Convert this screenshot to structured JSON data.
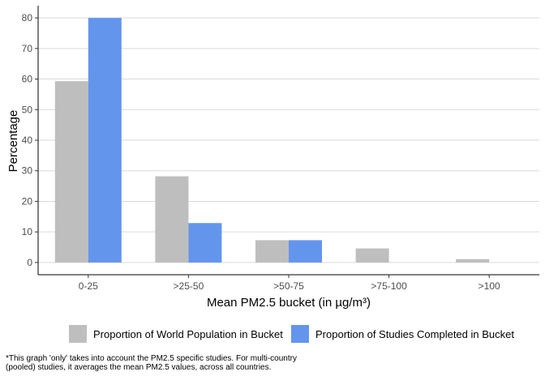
{
  "chart_data": {
    "type": "bar",
    "categories": [
      "0-25",
      ">25-50",
      ">50-75",
      ">75-100",
      ">100"
    ],
    "series": [
      {
        "name": "Proportion of World Population in Bucket",
        "values": [
          59.3,
          28.2,
          7.3,
          4.6,
          1.1
        ],
        "color": "#bebebe"
      },
      {
        "name": "Proportion of Studies Completed in Bucket",
        "values": [
          80.0,
          12.9,
          7.3,
          0,
          0
        ],
        "color": "#6495ed"
      }
    ],
    "xlabel": "Mean PM2.5 bucket (in µg/m³)",
    "ylabel": "Percentage",
    "yticks": [
      0,
      10,
      20,
      30,
      40,
      50,
      60,
      70,
      80
    ],
    "ylim": [
      -4,
      84
    ],
    "grid": "horizontal",
    "legend_position": "bottom"
  },
  "footnote": "*This graph 'only' takes into account the PM2.5 specific studies. For multi-country (pooled) studies, it averages the mean PM2.5 values, across all countries."
}
